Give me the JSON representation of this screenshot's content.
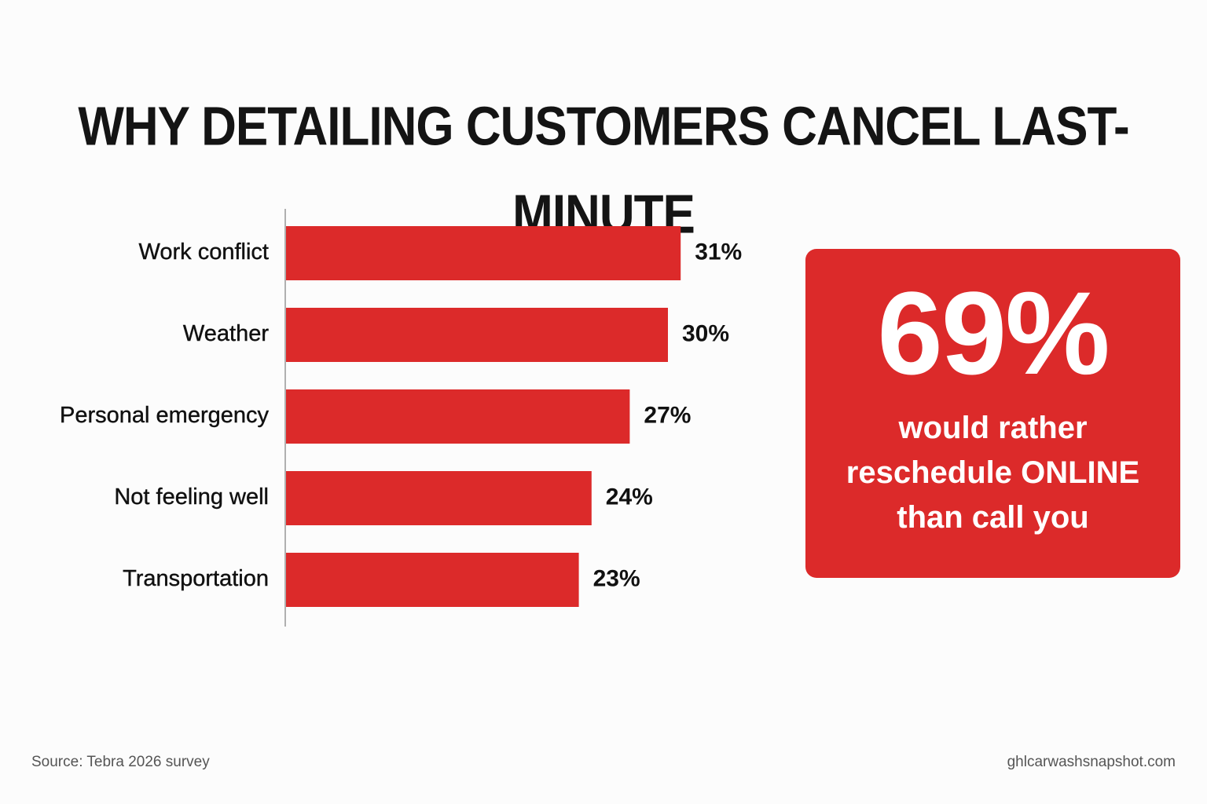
{
  "title": "WHY DETAILING CUSTOMERS CANCEL LAST-MINUTE",
  "colors": {
    "accent": "#dc2a2a",
    "axis": "#b0b0b0",
    "text": "#111111"
  },
  "chart_data": {
    "type": "bar",
    "orientation": "horizontal",
    "title": "WHY DETAILING CUSTOMERS CANCEL LAST-MINUTE",
    "categories": [
      "Work conflict",
      "Weather",
      "Personal emergency",
      "Not feeling well",
      "Transportation"
    ],
    "values": [
      31,
      30,
      27,
      24,
      23
    ],
    "value_labels": [
      "31%",
      "30%",
      "27%",
      "24%",
      "23%"
    ],
    "unit": "%",
    "grid": false,
    "legend": "none"
  },
  "callout": {
    "number": "69%",
    "lines": [
      "would rather",
      "reschedule ONLINE",
      "than call you"
    ]
  },
  "footer": {
    "source": "Source: Tebra 2026 survey",
    "website": "ghlcarwashsnapshot.com"
  }
}
